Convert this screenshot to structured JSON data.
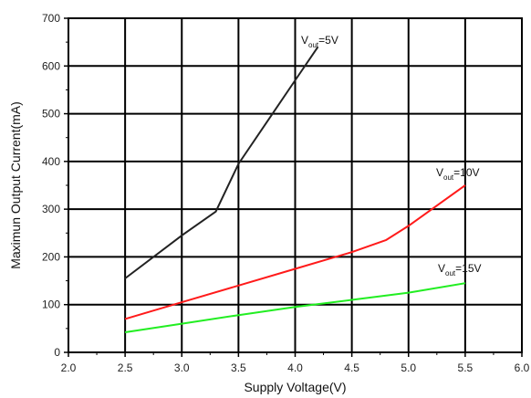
{
  "chart_data": {
    "type": "line",
    "title": "",
    "xlabel": "Supply Voltage(V)",
    "ylabel": "Maximun Output Current(mA)",
    "xlim": [
      2.0,
      6.0
    ],
    "ylim": [
      0,
      700
    ],
    "xticks": [
      2.0,
      2.5,
      3.0,
      3.5,
      4.0,
      4.5,
      5.0,
      5.5,
      6.0
    ],
    "xtick_labels": [
      "2.0",
      "2.5",
      "3.0",
      "3.5",
      "4.0",
      "4.5",
      "5.0",
      "5.5",
      "6.0"
    ],
    "yticks": [
      0,
      100,
      200,
      300,
      400,
      500,
      600,
      700
    ],
    "ytick_labels": [
      "0",
      "100",
      "200",
      "300",
      "400",
      "500",
      "600",
      "700"
    ],
    "grid": true,
    "series": [
      {
        "name": "Vout=5V",
        "label_main": "V",
        "label_sub": "out",
        "label_rest": "=5V",
        "color": "#222222",
        "x": [
          2.5,
          3.0,
          3.3,
          3.5,
          4.0,
          4.2
        ],
        "y": [
          155,
          245,
          295,
          395,
          570,
          640
        ]
      },
      {
        "name": "Vout=10V",
        "label_main": "V",
        "label_sub": "out",
        "label_rest": "=10V",
        "color": "#ff1a1a",
        "x": [
          2.5,
          3.0,
          3.5,
          4.0,
          4.5,
          4.8,
          5.0,
          5.5
        ],
        "y": [
          70,
          105,
          140,
          175,
          210,
          235,
          265,
          350
        ]
      },
      {
        "name": "Vout=15V",
        "label_main": "V",
        "label_sub": "out",
        "label_rest": "=15V",
        "color": "#22ee22",
        "x": [
          2.5,
          3.0,
          3.5,
          4.0,
          4.5,
          5.0,
          5.5
        ],
        "y": [
          42,
          60,
          78,
          95,
          110,
          125,
          145
        ]
      }
    ]
  }
}
